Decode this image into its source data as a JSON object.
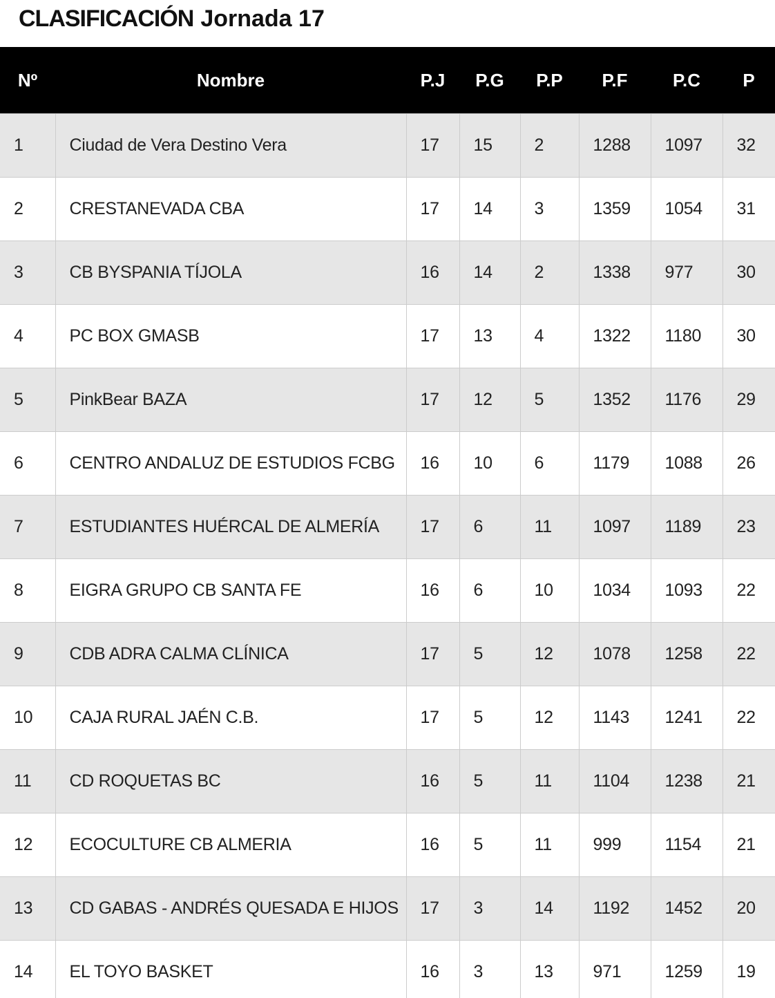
{
  "header": {
    "title": "CLASIFICACIÓN",
    "subtitle": "Jornada 17"
  },
  "table": {
    "columns": [
      "Nº",
      "Nombre",
      "P.J",
      "P.G",
      "P.P",
      "P.F",
      "P.C",
      "P"
    ],
    "rows": [
      [
        1,
        "Ciudad de Vera Destino Vera",
        17,
        15,
        2,
        1288,
        1097,
        32
      ],
      [
        2,
        "CRESTANEVADA CBA",
        17,
        14,
        3,
        1359,
        1054,
        31
      ],
      [
        3,
        "CB BYSPANIA TÍJOLA",
        16,
        14,
        2,
        1338,
        977,
        30
      ],
      [
        4,
        "PC BOX GMASB",
        17,
        13,
        4,
        1322,
        1180,
        30
      ],
      [
        5,
        "PinkBear BAZA",
        17,
        12,
        5,
        1352,
        1176,
        29
      ],
      [
        6,
        "CENTRO ANDALUZ DE ESTUDIOS FCBG",
        16,
        10,
        6,
        1179,
        1088,
        26
      ],
      [
        7,
        "ESTUDIANTES HUÉRCAL DE ALMERÍA",
        17,
        6,
        11,
        1097,
        1189,
        23
      ],
      [
        8,
        "EIGRA GRUPO CB SANTA FE",
        16,
        6,
        10,
        1034,
        1093,
        22
      ],
      [
        9,
        "CDB ADRA CALMA CLÍNICA",
        17,
        5,
        12,
        1078,
        1258,
        22
      ],
      [
        10,
        "CAJA RURAL JAÉN C.B.",
        17,
        5,
        12,
        1143,
        1241,
        22
      ],
      [
        11,
        "CD ROQUETAS BC",
        16,
        5,
        11,
        1104,
        1238,
        21
      ],
      [
        12,
        "ECOCULTURE CB ALMERIA",
        16,
        5,
        11,
        999,
        1154,
        21
      ],
      [
        13,
        "CD GABAS - ANDRÉS QUESADA E HIJOS",
        17,
        3,
        14,
        1192,
        1452,
        20
      ],
      [
        14,
        "EL TOYO BASKET",
        16,
        3,
        13,
        971,
        1259,
        19
      ]
    ]
  }
}
